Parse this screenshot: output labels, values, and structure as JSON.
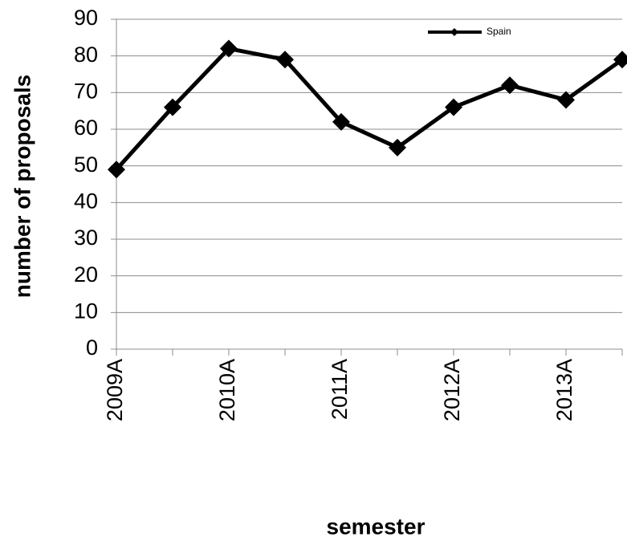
{
  "chart_data": {
    "type": "line",
    "x_label": "semester",
    "y_label": "number of proposals",
    "categories": [
      "2009A",
      null,
      "2010A",
      null,
      "2011A",
      null,
      "2012A",
      null,
      "2013A",
      null
    ],
    "series": [
      {
        "name": "Spain",
        "color": "#000000",
        "values": [
          49,
          66,
          82,
          79,
          62,
          55,
          66,
          72,
          68,
          79
        ]
      }
    ],
    "ylim": [
      0,
      90
    ],
    "yticks": [
      0,
      10,
      20,
      30,
      40,
      50,
      60,
      70,
      80,
      90
    ],
    "grid": true,
    "legend": "upper right"
  }
}
